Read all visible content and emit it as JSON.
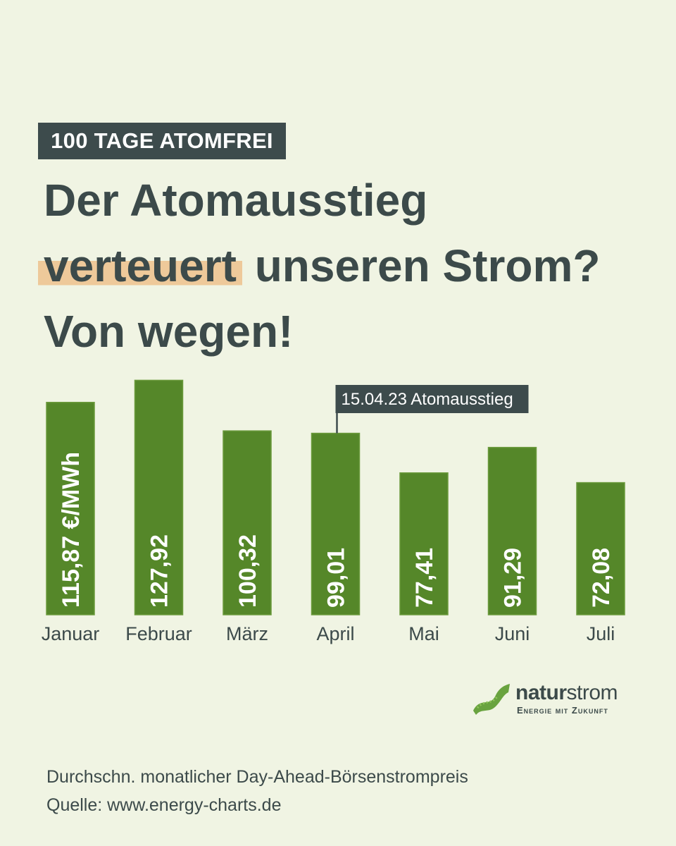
{
  "tag": "100 TAGE ATOMFREI",
  "headline": {
    "line1": "Der Atomausstieg",
    "line2_highlight": "verteuert",
    "line2_rest": " unseren Strom?",
    "line3": "Von wegen!"
  },
  "colors": {
    "background": "#f0f4e3",
    "bar": "#558729",
    "dark": "#3d4b4c",
    "highlight": "#eec99a",
    "logo_green": "#5a9a2c"
  },
  "chart_data": {
    "type": "bar",
    "categories": [
      "Januar",
      "Februar",
      "März",
      "April",
      "Mai",
      "Juni",
      "Juli"
    ],
    "values": [
      115.87,
      127.92,
      100.32,
      99.01,
      77.41,
      91.29,
      72.08
    ],
    "value_labels": [
      "115,87 €/MWh",
      "127,92",
      "100,32",
      "99,01",
      "77,41",
      "91,29",
      "72,08"
    ],
    "annotation": {
      "text": "15.04.23 Atomausstieg",
      "category": "April"
    }
  },
  "logo": {
    "name_bold": "natur",
    "name_light": "strom",
    "tagline": "Energie mit Zukunft"
  },
  "footnotes": {
    "caption": "Durchschn. monatlicher Day-Ahead-Börsenstrompreis",
    "source": "Quelle: www.energy-charts.de"
  }
}
